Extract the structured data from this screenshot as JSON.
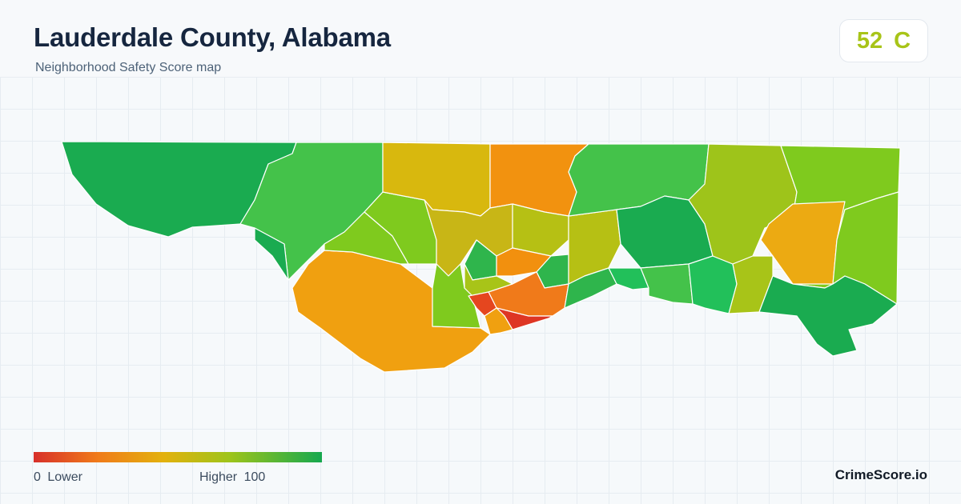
{
  "header": {
    "title": "Lauderdale County, Alabama",
    "subtitle": "Neighborhood Safety Score map"
  },
  "score": {
    "value": "52",
    "grade": "C",
    "color": "#a8c418"
  },
  "legend": {
    "low_value": "0",
    "low_label": "Lower",
    "high_label": "Higher",
    "high_value": "100",
    "scale_colors": [
      "#d7302a",
      "#f07a1a",
      "#e3b10d",
      "#9ec41a",
      "#16a84f"
    ]
  },
  "brand": "CrimeScore.io"
}
